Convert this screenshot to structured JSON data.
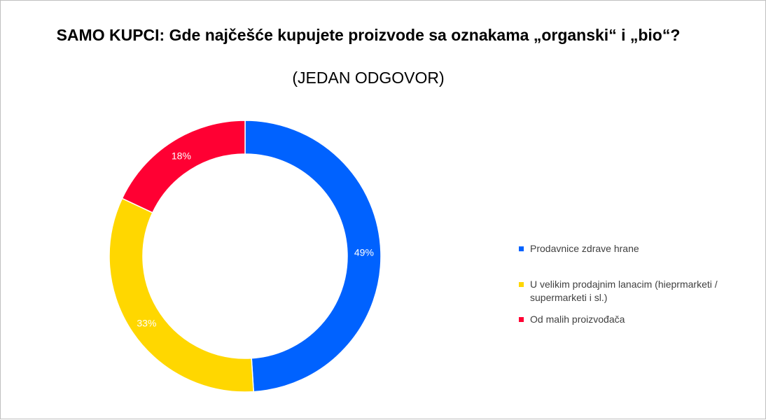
{
  "chart_data": {
    "type": "pie",
    "variant": "doughnut",
    "title": "SAMO KUPCI: Gde najčešće kupujete proizvode sa oznakama „organski“ i „bio“?",
    "subtitle": "(JEDAN ODGOVOR)",
    "categories": [
      "Prodavnice zdrave hrane",
      "U velikim prodajnim lanacim (hieprmarketi / supermarketi i sl.)",
      "Od malih proizvođača"
    ],
    "values": [
      49,
      33,
      18
    ],
    "labels": [
      "49%",
      "33%",
      "18%"
    ],
    "colors": [
      "#0062FF",
      "#FFD700",
      "#FF0033"
    ],
    "legend_position": "right"
  }
}
